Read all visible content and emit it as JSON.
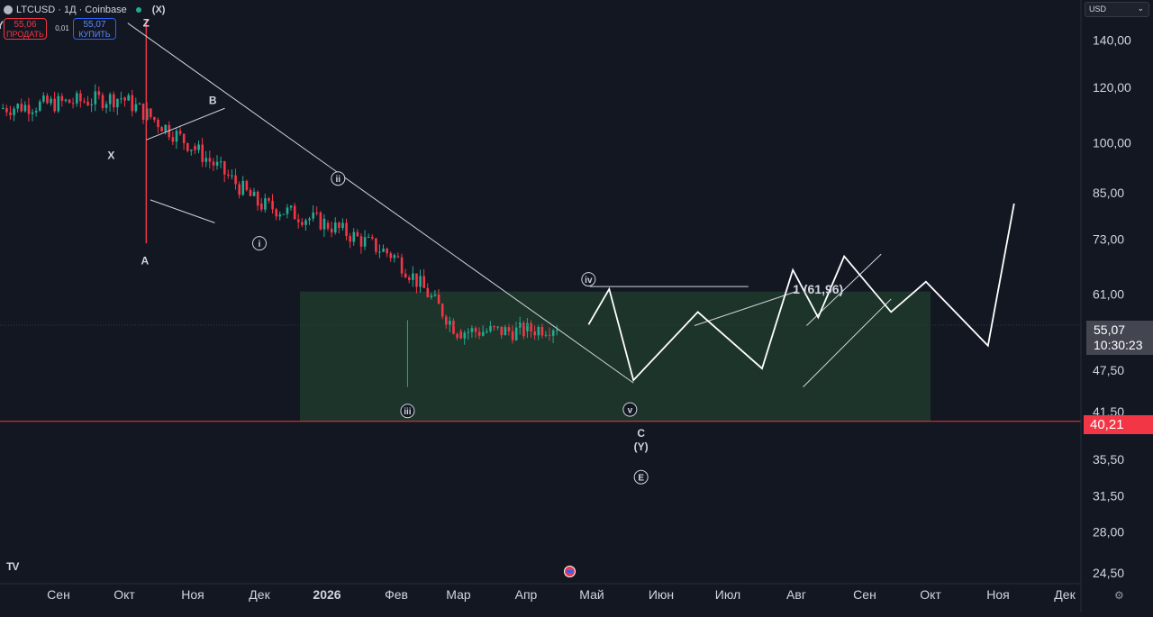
{
  "header": {
    "symbol": "LTCUSD · 1Д · Coinbase",
    "wave_tag": "(X)",
    "sell_price": "55,06",
    "sell_label": "ПРОДАТЬ",
    "spread": "0,01",
    "buy_price": "55,07",
    "buy_label": "КУПИТЬ"
  },
  "currency": "USD",
  "price_label": {
    "price": "55,07",
    "countdown": "10:30:23"
  },
  "red_label": "40,21",
  "colors": {
    "background": "#131722",
    "up": "#22ab94",
    "down": "#f23645",
    "zone_fill": "#1f3a2a",
    "projection": "#ffffff",
    "text": "#d1d4dc"
  },
  "icons": {
    "logo": "tradingview-logo-icon",
    "flag": "us-flag-icon",
    "settings": "gear-icon"
  },
  "chart_data": {
    "type": "candlestick",
    "symbol": "LTCUSD",
    "timeframe": "1Д",
    "exchange": "Coinbase",
    "scale": "log",
    "price_range": [
      23.5,
      155
    ],
    "y_ticks": [
      "140,00",
      "120,00",
      "100,00",
      "85,00",
      "73,00",
      "61,00",
      "47,50",
      "41,50",
      "35,50",
      "31,50",
      "28,00",
      "24,50"
    ],
    "x_ticks": [
      "Сен",
      "Окт",
      "Ноя",
      "Дек",
      "2026",
      "Фев",
      "Мар",
      "Апр",
      "Май",
      "Июн",
      "Июл",
      "Авг",
      "Сен",
      "Окт",
      "Ноя",
      "Дек"
    ],
    "last_price": 55.07,
    "horizontal_line": 40.21,
    "support_zone": [
      40.21,
      61.5
    ],
    "wave_labels": [
      "Y",
      "Z",
      "X",
      "B",
      "A",
      "ii",
      "i",
      "iii",
      "iv",
      "v",
      "C",
      "(Y)",
      "E"
    ],
    "annotation": "1 (61,96)",
    "price_path_monthly": [
      {
        "month": "Сен 2025",
        "open": 112,
        "close": 116
      },
      {
        "month": "Окт 2025",
        "open": 116,
        "close": 99
      },
      {
        "month": "Ноя 2025",
        "open": 99,
        "close": 82
      },
      {
        "month": "Дек 2025",
        "open": 82,
        "close": 77
      },
      {
        "month": "Янв 2026",
        "open": 77,
        "close": 69
      },
      {
        "month": "Фев 2026",
        "open": 69,
        "close": 54
      },
      {
        "month": "Мар 2026",
        "open": 54,
        "close": 54
      },
      {
        "month": "Апр 2026",
        "open": 54,
        "close": 55.07
      }
    ],
    "projection_path": [
      55.2,
      62,
      46,
      57.5,
      47.8,
      66,
      56.5,
      69,
      57.5,
      63.5,
      51.5,
      82
    ]
  }
}
